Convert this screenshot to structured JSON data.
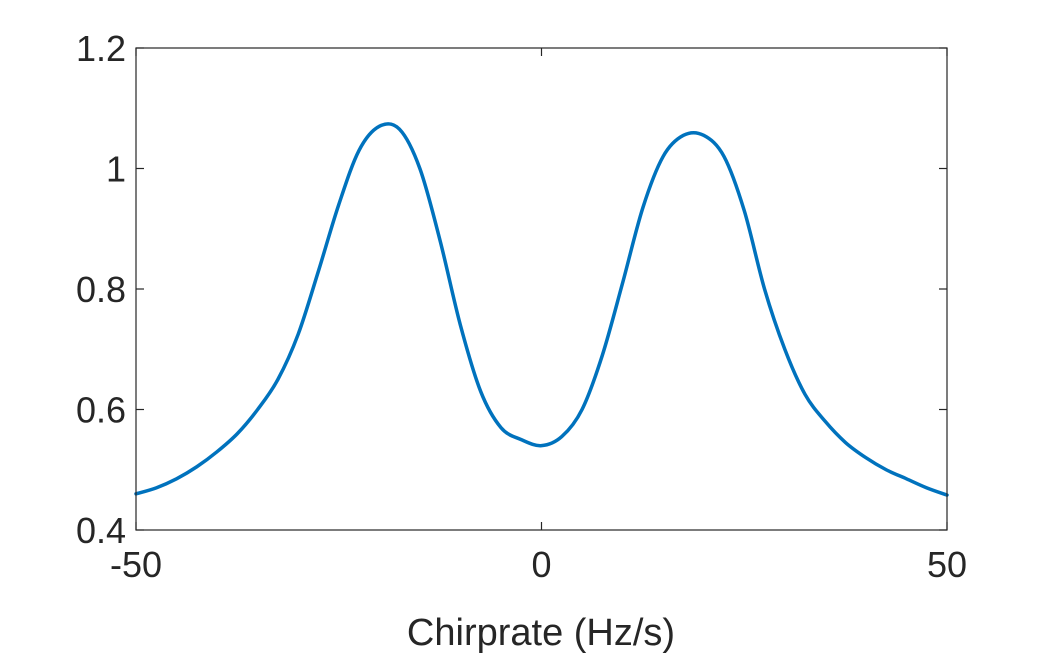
{
  "chart_data": {
    "type": "line",
    "title": "",
    "xlabel": "Chirprate (Hz/s)",
    "ylabel": "",
    "xlim": [
      -50,
      50
    ],
    "ylim": [
      0.4,
      1.2
    ],
    "xticks": [
      -50,
      0,
      50
    ],
    "yticks": [
      0.4,
      0.6,
      0.8,
      1,
      1.2
    ],
    "xtick_labels": [
      "-50",
      "0",
      "50"
    ],
    "ytick_labels": [
      "0.4",
      "0.6",
      "0.8",
      "1",
      "1.2"
    ],
    "grid": false,
    "box": true,
    "colors": {
      "series": "#0072BD",
      "axes": "#262626",
      "background": "#ffffff"
    },
    "series": [
      {
        "x": [
          -50,
          -47.5,
          -45,
          -42.5,
          -40,
          -37.5,
          -35,
          -32.5,
          -30,
          -27.5,
          -25,
          -22.5,
          -20,
          -17.5,
          -15,
          -12.5,
          -10,
          -7.5,
          -5,
          -2.5,
          0,
          2.5,
          5,
          7.5,
          10,
          12.5,
          15,
          17.5,
          20,
          22.5,
          25,
          27.5,
          30,
          32.5,
          35,
          37.5,
          40,
          42.5,
          45,
          47.5,
          50
        ],
        "y": [
          0.46,
          0.47,
          0.485,
          0.505,
          0.53,
          0.56,
          0.6,
          0.65,
          0.725,
          0.83,
          0.94,
          1.03,
          1.07,
          1.065,
          1.0,
          0.88,
          0.74,
          0.63,
          0.57,
          0.55,
          0.54,
          0.555,
          0.6,
          0.69,
          0.81,
          0.935,
          1.02,
          1.055,
          1.055,
          1.02,
          0.93,
          0.8,
          0.7,
          0.625,
          0.58,
          0.545,
          0.52,
          0.5,
          0.485,
          0.47,
          0.458
        ]
      }
    ]
  }
}
